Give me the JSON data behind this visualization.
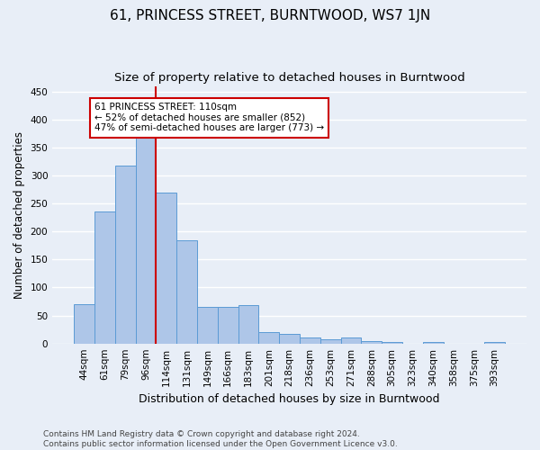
{
  "title": "61, PRINCESS STREET, BURNTWOOD, WS7 1JN",
  "subtitle": "Size of property relative to detached houses in Burntwood",
  "xlabel": "Distribution of detached houses by size in Burntwood",
  "ylabel": "Number of detached properties",
  "categories": [
    "44sqm",
    "61sqm",
    "79sqm",
    "96sqm",
    "114sqm",
    "131sqm",
    "149sqm",
    "166sqm",
    "183sqm",
    "201sqm",
    "218sqm",
    "236sqm",
    "253sqm",
    "271sqm",
    "288sqm",
    "305sqm",
    "323sqm",
    "340sqm",
    "358sqm",
    "375sqm",
    "393sqm"
  ],
  "values": [
    70,
    236,
    318,
    368,
    270,
    185,
    65,
    65,
    68,
    21,
    17,
    10,
    7,
    10,
    5,
    3,
    0,
    3,
    0,
    0,
    3
  ],
  "bar_color": "#aec6e8",
  "bar_edge_color": "#5b9bd5",
  "highlight_index": 4,
  "highlight_line_color": "#cc0000",
  "annotation_text": "61 PRINCESS STREET: 110sqm\n← 52% of detached houses are smaller (852)\n47% of semi-detached houses are larger (773) →",
  "annotation_box_color": "#ffffff",
  "annotation_box_edge": "#cc0000",
  "ylim": [
    0,
    460
  ],
  "yticks": [
    0,
    50,
    100,
    150,
    200,
    250,
    300,
    350,
    400,
    450
  ],
  "footer": "Contains HM Land Registry data © Crown copyright and database right 2024.\nContains public sector information licensed under the Open Government Licence v3.0.",
  "bg_color": "#e8eef7",
  "grid_color": "#ffffff",
  "title_fontsize": 11,
  "subtitle_fontsize": 9.5,
  "axis_label_fontsize": 8.5,
  "tick_fontsize": 7.5,
  "footer_fontsize": 6.5
}
